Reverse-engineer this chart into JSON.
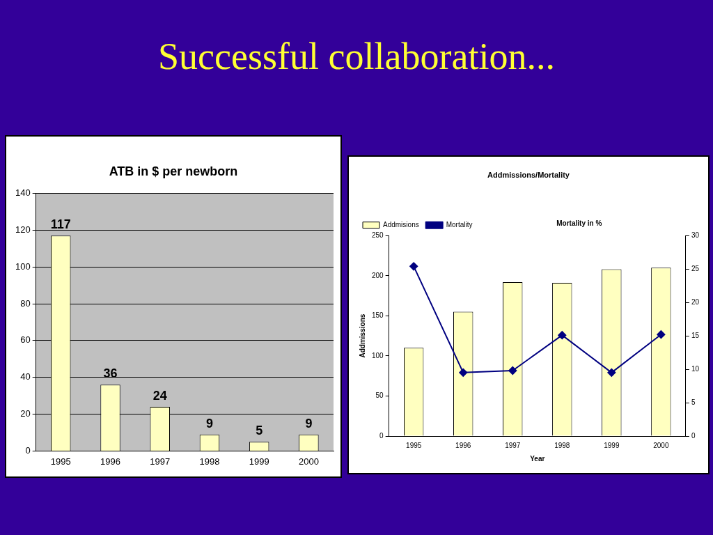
{
  "chart_data": [
    {
      "type": "bar",
      "title": "ATB in $ per newborn",
      "annotations": [
        "Successful collaboration..."
      ],
      "categories": [
        "1995",
        "1996",
        "1997",
        "1998",
        "1999",
        "2000"
      ],
      "values": [
        117,
        36,
        24,
        9,
        5,
        9
      ],
      "color": "#ffffc0",
      "ylim": [
        0,
        140
      ],
      "yticks": [
        0,
        20,
        40,
        60,
        80,
        100,
        120,
        140
      ],
      "grid": "y",
      "data_labels": true,
      "legend": false
    },
    {
      "type": "bar",
      "title": "Addmissions/Mortality",
      "xlabel": "Year",
      "ylabel": "Addmissions",
      "y2label": "Mortality in %",
      "categories": [
        "1995",
        "1996",
        "1997",
        "1998",
        "1999",
        "2000"
      ],
      "series": [
        {
          "name": "Addmisions",
          "type": "bar",
          "color": "#ffffc0",
          "values": [
            110,
            155,
            192,
            191,
            208,
            210
          ]
        },
        {
          "name": "Mortality",
          "type": "line",
          "axis": "y2",
          "color": "#000080",
          "values": [
            25.4,
            9.5,
            9.8,
            15.1,
            9.5,
            15.2
          ]
        }
      ],
      "ylim": [
        0,
        250
      ],
      "yticks": [
        0,
        50,
        100,
        150,
        200,
        250
      ],
      "y2lim": [
        0,
        30
      ],
      "y2ticks": [
        0,
        5,
        10,
        15,
        20,
        25,
        30
      ],
      "grid": false,
      "legend": "top left",
      "marker": "diamond",
      "line_style": "solid"
    }
  ]
}
